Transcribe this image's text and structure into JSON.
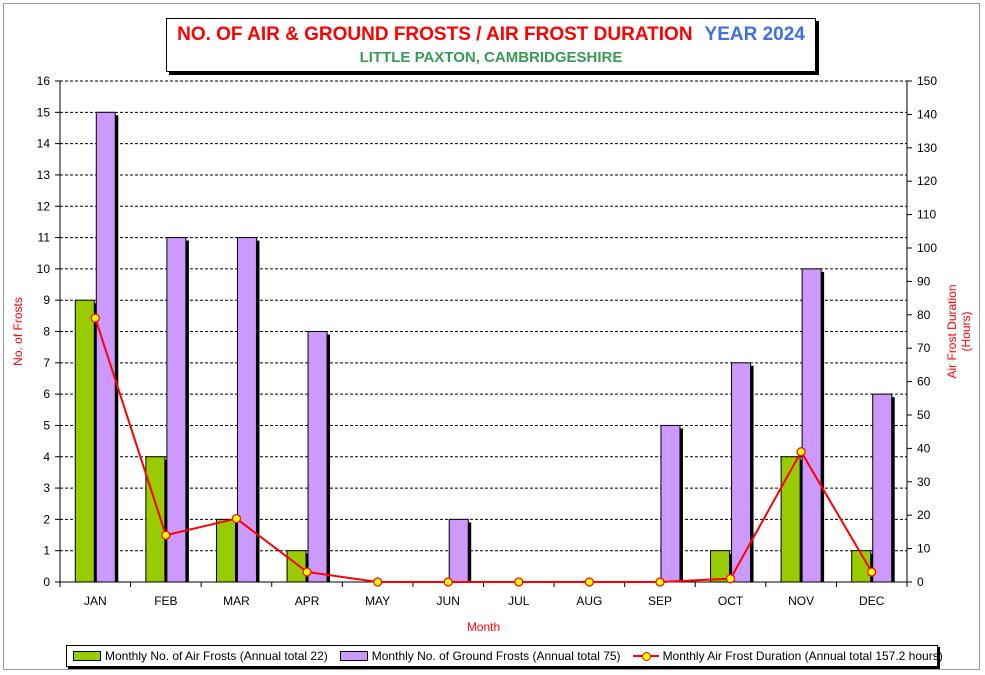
{
  "title": {
    "main": "NO. OF AIR & GROUND FROSTS / AIR FROST DURATION",
    "year": "YEAR 2024",
    "subtitle": "LITTLE PAXTON, CAMBRIDGESHIRE"
  },
  "colors": {
    "air_frost_bar": "#99cc00",
    "ground_frost_bar": "#cc99ff",
    "duration_line": "#ff0000",
    "duration_marker": "#ffff00",
    "axis_label": "#ff0000",
    "title_main": "#ff0000",
    "title_year": "#3f6fe0",
    "subtitle": "#3a9a55"
  },
  "legend": {
    "air": "Monthly No. of Air Frosts (Annual total 22)",
    "ground": "Monthly No. of Ground Frosts (Annual total 75)",
    "duration": "Monthly Air Frost Duration (Annual total 157.2 hours)"
  },
  "chart_data": {
    "type": "bar",
    "categories": [
      "JAN",
      "FEB",
      "MAR",
      "APR",
      "MAY",
      "JUN",
      "JUL",
      "AUG",
      "SEP",
      "OCT",
      "NOV",
      "DEC"
    ],
    "series": [
      {
        "name": "Monthly No. of Air Frosts (Annual total 22)",
        "type": "bar",
        "axis": "left",
        "values": [
          9,
          4,
          2,
          1,
          0,
          0,
          0,
          0,
          0,
          1,
          4,
          1
        ]
      },
      {
        "name": "Monthly No. of Ground Frosts (Annual total 75)",
        "type": "bar",
        "axis": "left",
        "values": [
          15,
          11,
          11,
          8,
          0,
          2,
          0,
          0,
          5,
          7,
          10,
          6
        ]
      },
      {
        "name": "Monthly Air Frost Duration (Annual total 157.2 hours)",
        "type": "line",
        "axis": "right",
        "values": [
          79,
          14,
          19,
          3,
          0,
          0,
          0,
          0,
          0,
          1,
          39,
          3
        ]
      }
    ],
    "xlabel": "Month",
    "ylabel": "No. of Frosts",
    "y2label": [
      "Air Frost Duration",
      "(Hours)"
    ],
    "ylim": [
      0,
      16
    ],
    "y2lim": [
      0,
      150
    ],
    "yticks": [
      0,
      1,
      2,
      3,
      4,
      5,
      6,
      7,
      8,
      9,
      10,
      11,
      12,
      13,
      14,
      15,
      16
    ],
    "y2ticks": [
      0,
      10,
      20,
      30,
      40,
      50,
      60,
      70,
      80,
      90,
      100,
      110,
      120,
      130,
      140,
      150
    ],
    "grid": true,
    "legend_position": "bottom"
  }
}
